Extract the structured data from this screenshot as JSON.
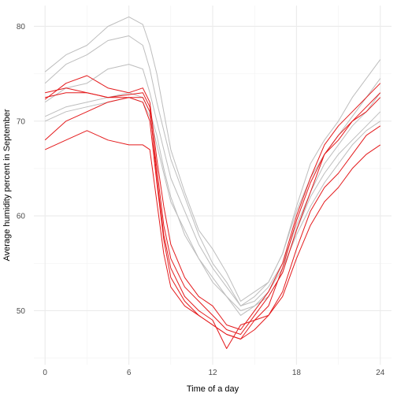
{
  "chart_data": {
    "type": "line",
    "xlabel": "Time of a day",
    "ylabel": "Average humidity percent in September",
    "xlim": [
      -0.8,
      24.8
    ],
    "ylim": [
      44.3,
      82.2
    ],
    "x_ticks": [
      0,
      6,
      12,
      18,
      24
    ],
    "y_ticks": [
      50,
      60,
      70,
      80
    ],
    "x_minor_ticks": [
      3,
      9,
      15,
      21
    ],
    "y_minor_ticks": [
      45,
      55,
      65,
      75
    ],
    "grid": true,
    "x": [
      0,
      1.5,
      3,
      4.5,
      6,
      7,
      7.5,
      8,
      8.5,
      9,
      10,
      11,
      12,
      13,
      14,
      15,
      16,
      17,
      18,
      19,
      20,
      21,
      22,
      23,
      24
    ],
    "series": [
      {
        "color": "#bdbdbd",
        "values": [
          75.2,
          77.0,
          78.0,
          80.0,
          81.0,
          80.2,
          78.0,
          75.0,
          71.0,
          67.0,
          62.5,
          58.5,
          56.5,
          54.0,
          51.0,
          52.0,
          53.0,
          56.0,
          61.0,
          65.5,
          68.0,
          70.0,
          72.5,
          74.5,
          76.5
        ]
      },
      {
        "color": "#bdbdbd",
        "values": [
          74.0,
          76.0,
          77.0,
          78.5,
          79.0,
          78.0,
          75.5,
          72.0,
          69.0,
          66.0,
          62.0,
          58.0,
          55.0,
          53.0,
          50.5,
          51.5,
          53.0,
          56.0,
          60.5,
          64.0,
          66.5,
          68.5,
          70.5,
          72.5,
          74.5
        ]
      },
      {
        "color": "#bdbdbd",
        "values": [
          72.0,
          73.5,
          74.0,
          75.5,
          76.0,
          75.5,
          73.0,
          70.0,
          67.0,
          64.0,
          60.5,
          57.0,
          54.5,
          52.5,
          50.5,
          51.0,
          52.5,
          55.0,
          59.0,
          62.5,
          65.5,
          67.5,
          69.5,
          71.0,
          73.0
        ]
      },
      {
        "color": "#bdbdbd",
        "values": [
          70.0,
          71.0,
          71.5,
          72.0,
          72.5,
          72.0,
          70.5,
          67.5,
          64.5,
          61.5,
          58.5,
          55.5,
          53.0,
          51.5,
          50.0,
          50.5,
          52.0,
          54.5,
          58.0,
          61.0,
          63.5,
          65.5,
          67.5,
          69.0,
          70.0
        ]
      },
      {
        "color": "#bdbdbd",
        "values": [
          70.5,
          71.5,
          72.0,
          72.5,
          73.0,
          72.5,
          71.0,
          68.5,
          65.0,
          62.0,
          58.0,
          55.5,
          53.5,
          51.5,
          49.5,
          50.5,
          51.5,
          54.0,
          58.5,
          62.0,
          64.5,
          66.5,
          68.0,
          69.5,
          71.0
        ]
      },
      {
        "color": "#e41a1c",
        "values": [
          72.3,
          74.0,
          74.8,
          73.5,
          73.0,
          73.5,
          72.0,
          66.0,
          61.0,
          57.0,
          53.5,
          51.5,
          50.5,
          48.5,
          48.0,
          50.0,
          52.0,
          55.0,
          60.0,
          64.0,
          67.5,
          69.5,
          71.0,
          72.5,
          74.0
        ]
      },
      {
        "color": "#e41a1c",
        "values": [
          73.0,
          73.5,
          73.0,
          72.5,
          72.5,
          72.5,
          71.0,
          65.0,
          59.0,
          55.5,
          52.5,
          51.0,
          49.5,
          48.0,
          47.5,
          49.5,
          51.5,
          54.0,
          58.5,
          62.5,
          66.5,
          68.5,
          70.0,
          71.5,
          73.0
        ]
      },
      {
        "color": "#e41a1c",
        "values": [
          72.5,
          73.0,
          73.0,
          72.5,
          72.8,
          73.0,
          71.5,
          64.0,
          58.0,
          54.5,
          51.5,
          50.0,
          49.0,
          46.0,
          48.5,
          49.0,
          50.5,
          54.5,
          59.5,
          63.5,
          66.5,
          68.0,
          70.0,
          71.0,
          72.5
        ]
      },
      {
        "color": "#e41a1c",
        "values": [
          68.0,
          70.0,
          71.0,
          72.0,
          72.5,
          72.0,
          70.0,
          63.5,
          57.5,
          53.5,
          51.0,
          49.5,
          48.5,
          47.5,
          47.0,
          48.0,
          49.5,
          52.0,
          56.5,
          60.5,
          63.0,
          64.5,
          66.5,
          68.5,
          69.5
        ]
      },
      {
        "color": "#e41a1c",
        "values": [
          67.0,
          68.0,
          69.0,
          68.0,
          67.5,
          67.5,
          67.0,
          61.5,
          56.0,
          52.5,
          50.5,
          49.5,
          48.5,
          47.5,
          47.0,
          49.0,
          49.5,
          51.5,
          55.5,
          59.0,
          61.5,
          63.0,
          65.0,
          66.5,
          67.5
        ]
      }
    ]
  }
}
